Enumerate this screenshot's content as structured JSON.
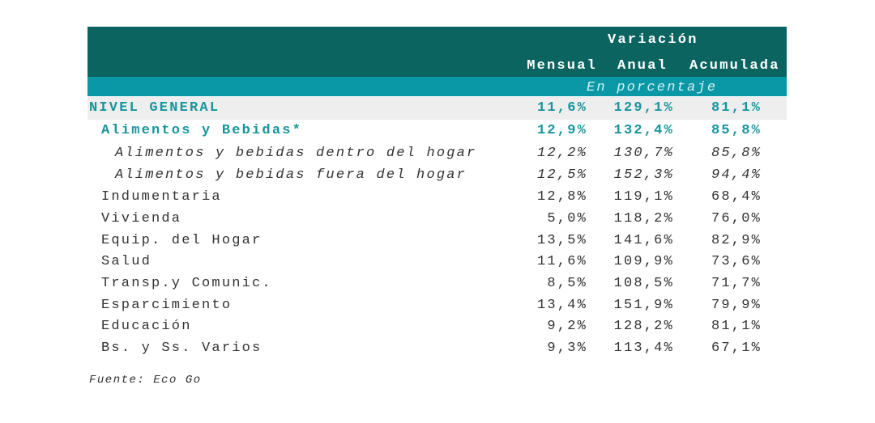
{
  "header": {
    "title": "Variación",
    "columns": [
      "Mensual",
      "Anual",
      "Acumulada"
    ],
    "subtitle": "En porcentaje"
  },
  "table": {
    "rows": [
      {
        "label": "NIVEL GENERAL",
        "values": [
          "11,6%",
          "129,1%",
          "81,1%"
        ]
      },
      {
        "label": "Alimentos y Bebidas*",
        "values": [
          "12,9%",
          "132,4%",
          "85,8%"
        ]
      },
      {
        "label": "Alimentos y bebidas dentro del hogar",
        "values": [
          "12,2%",
          "130,7%",
          "85,8%"
        ]
      },
      {
        "label": "Alimentos y bebidas fuera del hogar",
        "values": [
          "12,5%",
          "152,3%",
          "94,4%"
        ]
      },
      {
        "label": "Indumentaria",
        "values": [
          "12,8%",
          "119,1%",
          "68,4%"
        ]
      },
      {
        "label": "Vivienda",
        "values": [
          "5,0%",
          "118,2%",
          "76,0%"
        ]
      },
      {
        "label": "Equip. del Hogar",
        "values": [
          "13,5%",
          "141,6%",
          "82,9%"
        ]
      },
      {
        "label": "Salud",
        "values": [
          "11,6%",
          "109,9%",
          "73,6%"
        ]
      },
      {
        "label": "Transp.y Comunic.",
        "values": [
          "8,5%",
          "108,5%",
          "71,7%"
        ]
      },
      {
        "label": "Esparcimiento",
        "values": [
          "13,4%",
          "151,9%",
          "79,9%"
        ]
      },
      {
        "label": "Educación",
        "values": [
          "9,2%",
          "128,2%",
          "81,1%"
        ]
      },
      {
        "label": "Bs. y Ss. Varios",
        "values": [
          "9,3%",
          "113,4%",
          "67,1%"
        ]
      }
    ]
  },
  "footer": {
    "source": "Fuente: Eco Go"
  }
}
